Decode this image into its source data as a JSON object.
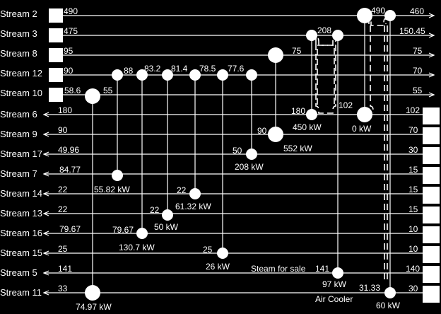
{
  "streams": [
    {
      "name": "Stream 2",
      "kind": "hot",
      "start": "490",
      "end": "460"
    },
    {
      "name": "Stream 3",
      "kind": "hot",
      "start": "475",
      "end": "150.45"
    },
    {
      "name": "Stream 8",
      "kind": "hot",
      "start": "95",
      "end": "75"
    },
    {
      "name": "Stream 12",
      "kind": "hot",
      "start": "90",
      "end": "70"
    },
    {
      "name": "Stream 10",
      "kind": "hot",
      "start": "58.6",
      "end": "55"
    },
    {
      "name": "Stream 6",
      "kind": "cold",
      "start": "180",
      "end": "102"
    },
    {
      "name": "Stream 9",
      "kind": "cold",
      "start": "90",
      "end": "70"
    },
    {
      "name": "Stream 17",
      "kind": "cold",
      "start": "49.96",
      "end": "30"
    },
    {
      "name": "Stream 7",
      "kind": "cold",
      "start": "84.77",
      "end": "15"
    },
    {
      "name": "Stream 14",
      "kind": "cold",
      "start": "22",
      "end": "15"
    },
    {
      "name": "Stream 13",
      "kind": "cold",
      "start": "22",
      "end": "15"
    },
    {
      "name": "Stream 16",
      "kind": "cold",
      "start": "79.67",
      "end": "10"
    },
    {
      "name": "Stream 15",
      "kind": "cold",
      "start": "25",
      "end": "10"
    },
    {
      "name": "Stream 5",
      "kind": "cold",
      "start": "141",
      "end": "140"
    },
    {
      "name": "Stream 11",
      "kind": "cold",
      "start": "33",
      "end": "30"
    }
  ],
  "interval_temps": [
    "88",
    "83.2",
    "81.4",
    "78.5",
    "77.6"
  ],
  "temps": {
    "s10_hx": "55",
    "s8_hx": "75",
    "s3_hx": "208",
    "s2_hx": "490",
    "s6_left": "180",
    "s6_mid": "102",
    "s9_hx": "90",
    "s17_hx": "50",
    "s14_hx": "22",
    "s13_hx": "22",
    "s16_hx": "79.67",
    "s15_hx": "25",
    "s5_hx": "141",
    "s11_hx": "31.33"
  },
  "duties": {
    "s6_left": "450 kW",
    "s6_right": "0 kW",
    "s9": "552 kW",
    "s17": "208 kW",
    "s7": "55.82 kW",
    "s14": "61.32 kW",
    "s13": "50 kW",
    "s16": "130.7 kW",
    "s15": "26 kW",
    "s5": "97 kW",
    "s11_left": "74.97 kW",
    "s11_right": "60 kW"
  },
  "notes": {
    "steam": "Steam for sale",
    "air_cooler": "Air Cooler"
  }
}
